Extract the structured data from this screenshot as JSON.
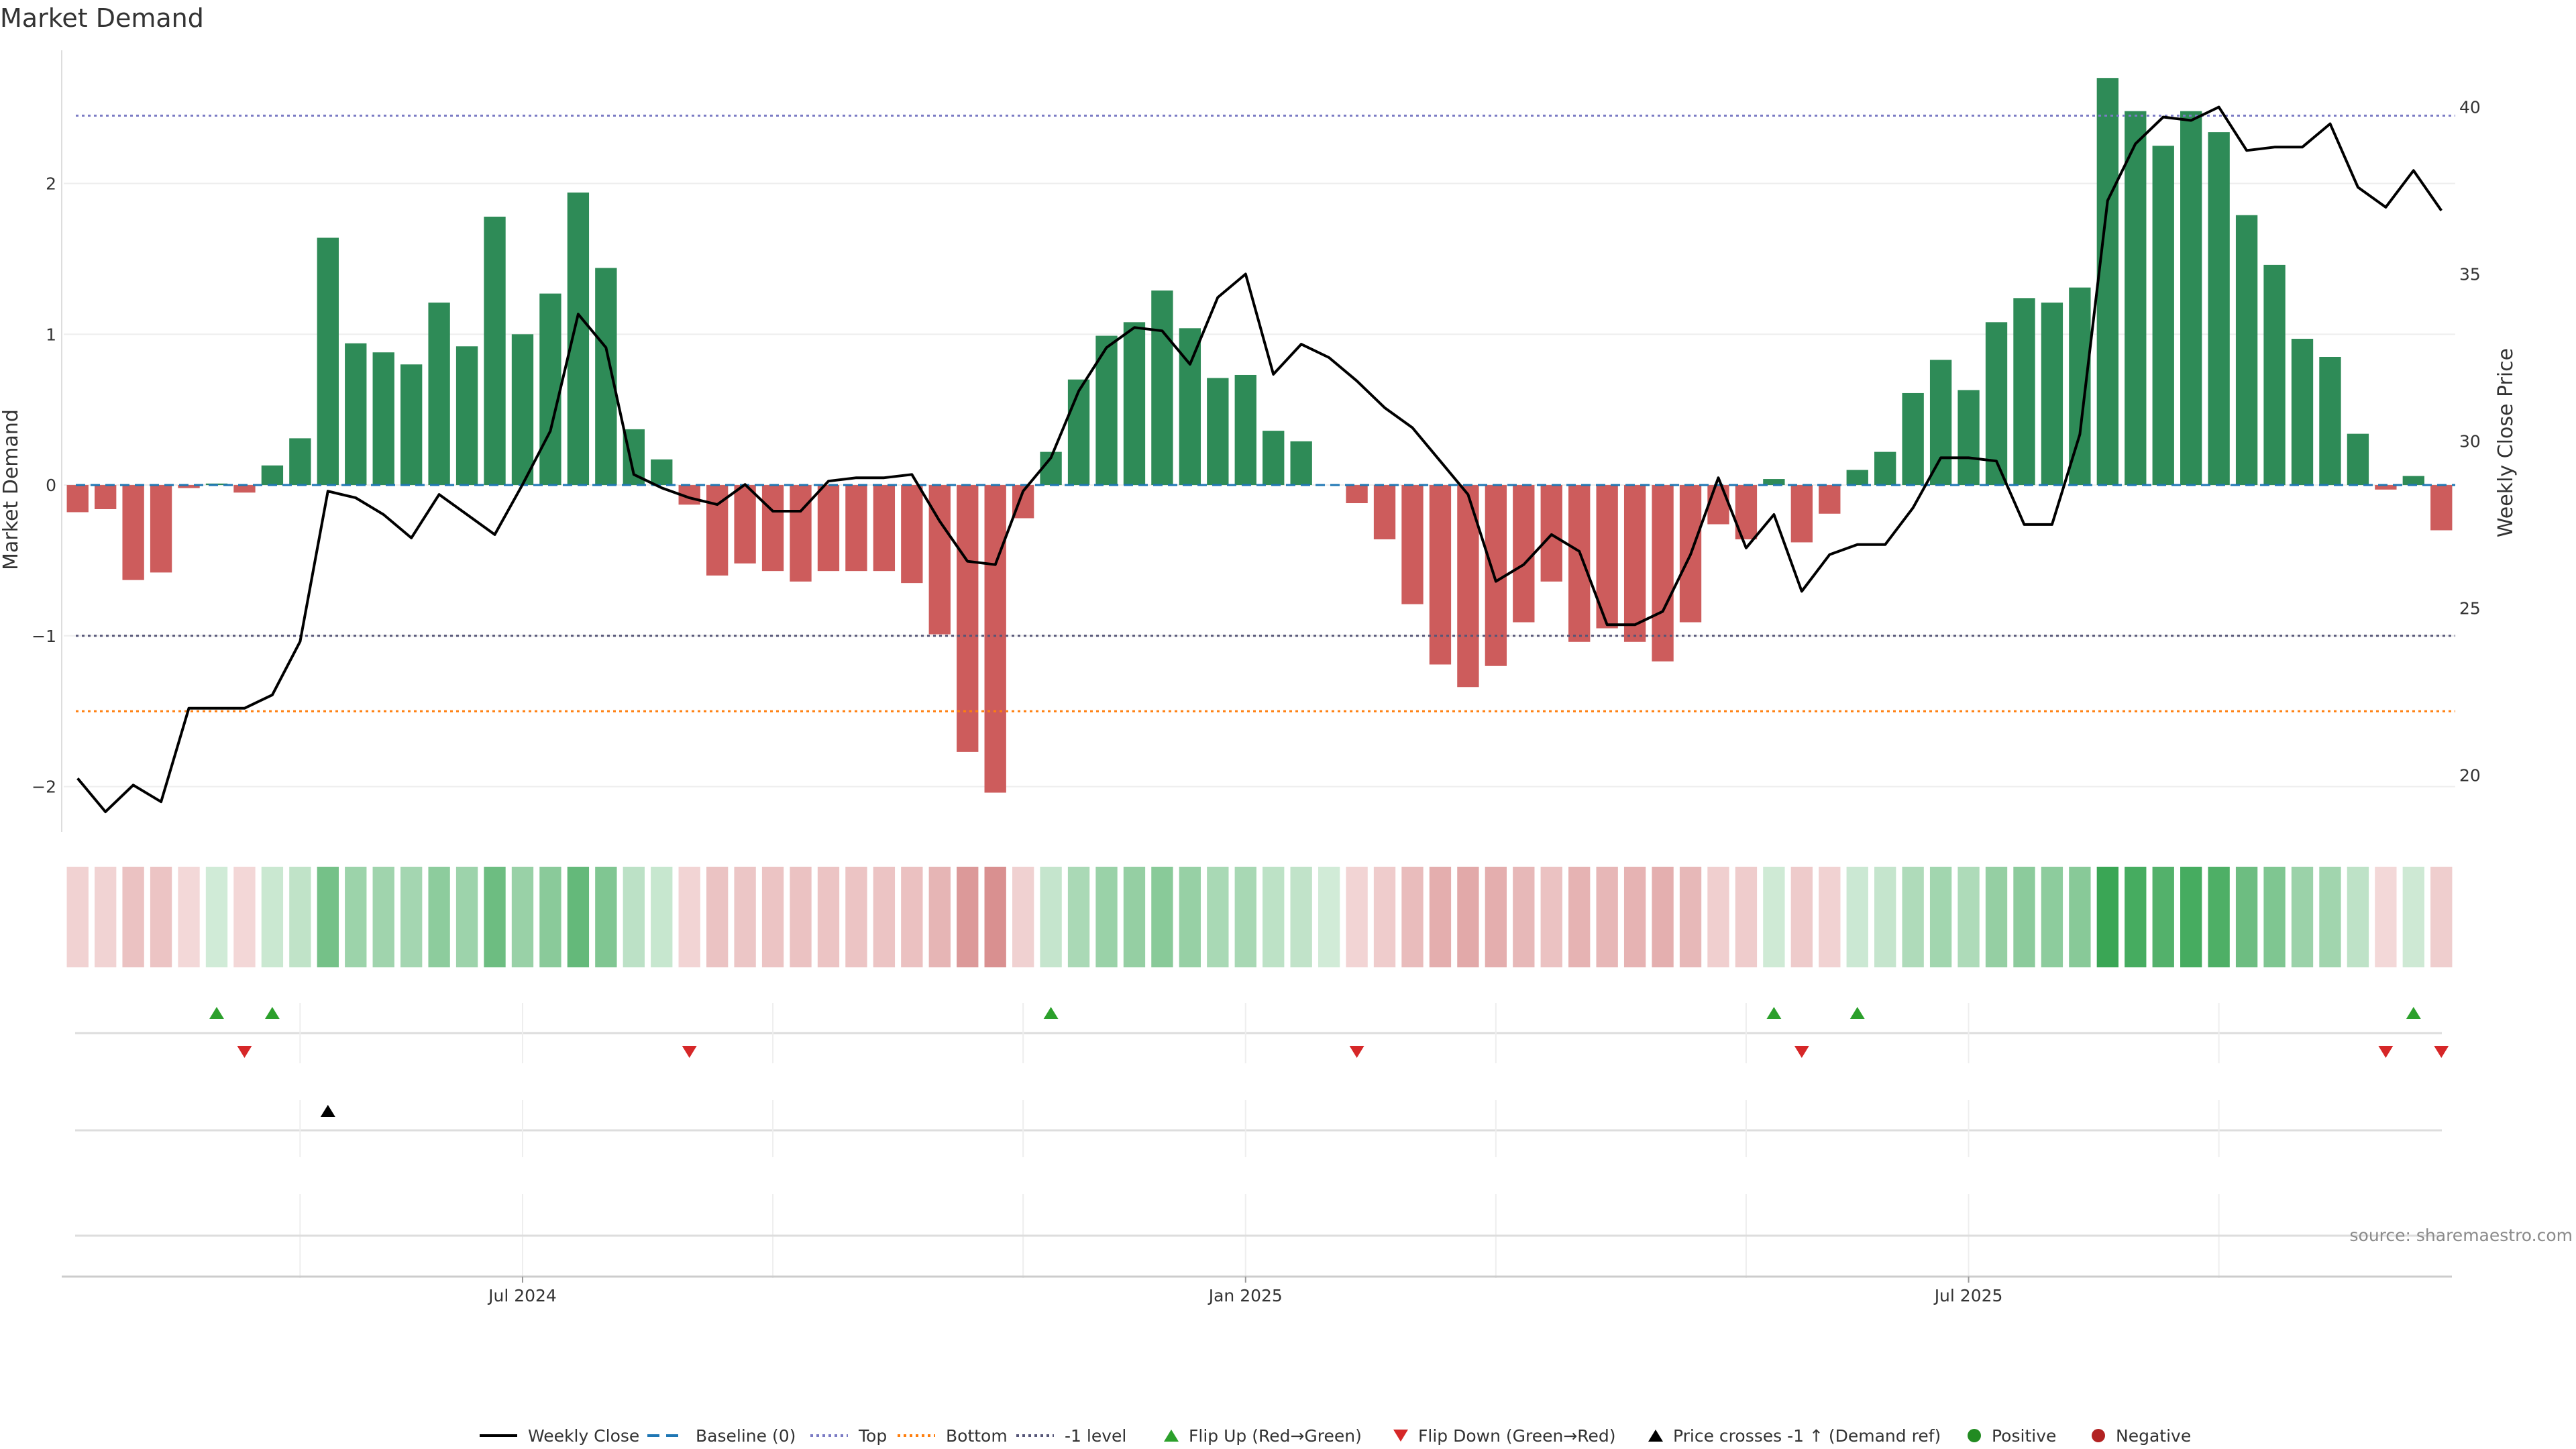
{
  "chart_data": {
    "type": "bar+line",
    "title": "Market Demand",
    "ylabel": "Market Demand",
    "y2label": "Weekly Close Price",
    "ylim": [
      -2.3,
      2.95
    ],
    "y2lim": [
      18.3,
      42.0
    ],
    "yticks": [
      {
        "v": 2,
        "label": "2"
      },
      {
        "v": 1,
        "label": "1"
      },
      {
        "v": 0,
        "label": "0"
      },
      {
        "v": -1,
        "label": "−1"
      },
      {
        "v": -2,
        "label": "−2"
      }
    ],
    "y2ticks": [
      {
        "v": 40,
        "label": "40"
      },
      {
        "v": 35,
        "label": "35"
      },
      {
        "v": 30,
        "label": "30"
      },
      {
        "v": 25,
        "label": "25"
      },
      {
        "v": 20,
        "label": "20"
      }
    ],
    "xticks": [
      {
        "week": 16,
        "label": "Jul 2024"
      },
      {
        "week": 42,
        "label": "Jan 2025"
      },
      {
        "week": 68,
        "label": "Jul 2025"
      }
    ],
    "reference_lines": {
      "top": 2.45,
      "bottom": -1.5,
      "minus_one": -1.0,
      "baseline": 0
    },
    "demand": [
      -0.18,
      -0.16,
      -0.63,
      -0.58,
      -0.02,
      0.01,
      -0.05,
      0.13,
      0.31,
      1.64,
      0.94,
      0.88,
      0.8,
      1.21,
      0.92,
      1.78,
      1.0,
      1.27,
      1.94,
      1.44,
      0.37,
      0.17,
      -0.13,
      -0.6,
      -0.52,
      -0.57,
      -0.64,
      -0.57,
      -0.57,
      -0.57,
      -0.65,
      -0.99,
      -1.77,
      -2.04,
      -0.22,
      0.22,
      0.7,
      0.99,
      1.08,
      1.29,
      1.04,
      0.71,
      0.73,
      0.36,
      0.29,
      0.0,
      -0.12,
      -0.36,
      -0.79,
      -1.19,
      -1.34,
      -1.2,
      -0.91,
      -0.64,
      -1.04,
      -0.95,
      -1.04,
      -1.17,
      -0.91,
      -0.26,
      -0.36,
      0.04,
      -0.38,
      -0.19,
      0.1,
      0.22,
      0.61,
      0.83,
      0.63,
      1.08,
      1.24,
      1.21,
      1.31,
      2.7,
      2.48,
      2.25,
      2.48,
      2.34,
      1.79,
      1.46,
      0.97,
      0.85,
      0.34,
      -0.03,
      0.06,
      -0.3
    ],
    "weekly_close": [
      19.9,
      18.9,
      19.7,
      19.2,
      22.0,
      22.0,
      22.0,
      22.4,
      24.0,
      28.5,
      28.3,
      27.8,
      27.1,
      28.4,
      27.8,
      27.2,
      28.7,
      30.3,
      33.8,
      32.8,
      29.0,
      28.6,
      28.3,
      28.1,
      28.7,
      27.9,
      27.9,
      28.8,
      28.9,
      28.9,
      29.0,
      27.6,
      26.4,
      26.3,
      28.5,
      29.5,
      31.5,
      32.8,
      33.4,
      33.3,
      32.3,
      34.3,
      35.0,
      32.0,
      32.9,
      32.5,
      31.8,
      31.0,
      30.4,
      29.4,
      28.4,
      25.8,
      26.3,
      27.2,
      26.7,
      24.5,
      24.5,
      24.9,
      26.6,
      28.9,
      26.8,
      27.8,
      25.5,
      26.6,
      26.9,
      26.9,
      28.0,
      29.5,
      29.5,
      29.4,
      27.5,
      27.5,
      30.2,
      37.2,
      38.9,
      39.7,
      39.6,
      40.0,
      38.7,
      38.8,
      38.8,
      39.5,
      37.6,
      37.0,
      38.1,
      36.9
    ],
    "flip_up_weeks": [
      5,
      7,
      35,
      61,
      64,
      84
    ],
    "flip_down_weeks": [
      6,
      22,
      46,
      62,
      83,
      85
    ],
    "price_cross_weeks": [
      9
    ],
    "source": "source: sharemaestro.com",
    "legend": [
      {
        "key": "close",
        "label": "Weekly Close"
      },
      {
        "key": "baseline",
        "label": "Baseline (0)"
      },
      {
        "key": "top",
        "label": "Top"
      },
      {
        "key": "bottom",
        "label": "Bottom"
      },
      {
        "key": "minus1",
        "label": "-1 level"
      },
      {
        "key": "flipup",
        "label": "Flip Up (Red→Green)"
      },
      {
        "key": "flipdown",
        "label": "Flip Down (Green→Red)"
      },
      {
        "key": "cross",
        "label": "Price crosses -1 ↑ (Demand ref)"
      },
      {
        "key": "positive",
        "label": "Positive"
      },
      {
        "key": "negative",
        "label": "Negative"
      }
    ],
    "colors": {
      "positive": "#2e8b57",
      "negative": "#cd5c5c",
      "line": "#000000",
      "baseline": "#1f77b4",
      "top": "#7b7bc4",
      "bottom": "#ff7f0e",
      "minus_one": "#555577",
      "flip_up": "#2ca02c",
      "flip_down": "#d62728",
      "cross": "#000000",
      "pos_dot": "#228b22",
      "neg_dot": "#b22222"
    }
  }
}
